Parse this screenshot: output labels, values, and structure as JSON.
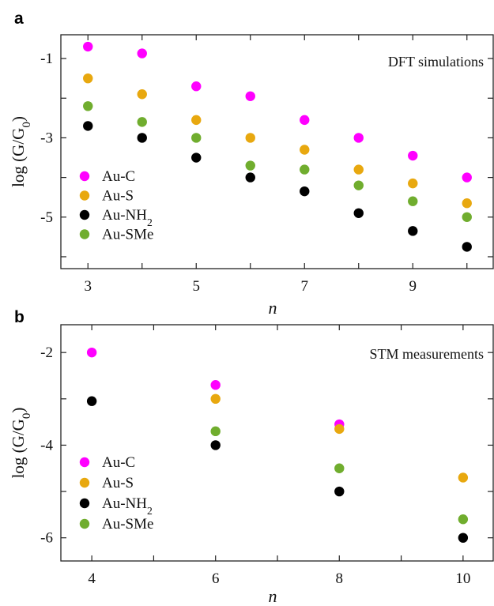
{
  "colors": {
    "Au-C": "#ff00ff",
    "Au-S": "#e8a80f",
    "Au-NH2": "#000000",
    "Au-SMe": "#70ad2e"
  },
  "chart_data": [
    {
      "panel_label": "a",
      "type": "scatter",
      "title": "DFT simulations",
      "xlabel": "n",
      "ylabel": "log (G/G0)",
      "xlim": [
        2.5,
        10.5
      ],
      "ylim": [
        -6.3,
        -0.4
      ],
      "xticks": [
        3,
        4,
        5,
        6,
        7,
        8,
        9,
        10
      ],
      "xtick_labels": [
        "3",
        "",
        "5",
        "",
        "7",
        "",
        "9",
        ""
      ],
      "yticks": [
        -1,
        -2,
        -3,
        -4,
        -5,
        -6
      ],
      "ytick_labels": [
        "-1",
        "",
        "-3",
        "",
        "-5",
        ""
      ],
      "legend_position": "lower-left",
      "series": [
        {
          "name": "Au-C",
          "x": [
            3,
            4,
            5,
            6,
            7,
            8,
            9,
            10
          ],
          "y": [
            -0.7,
            -0.87,
            -1.7,
            -1.95,
            -2.55,
            -3.0,
            -3.45,
            -4.0
          ]
        },
        {
          "name": "Au-S",
          "x": [
            3,
            4,
            5,
            6,
            7,
            8,
            9,
            10
          ],
          "y": [
            -1.5,
            -1.9,
            -2.55,
            -3.0,
            -3.3,
            -3.8,
            -4.15,
            -4.65
          ]
        },
        {
          "name": "Au-NH2",
          "x": [
            3,
            4,
            5,
            6,
            7,
            8,
            9,
            10
          ],
          "y": [
            -2.7,
            -3.0,
            -3.5,
            -4.0,
            -4.35,
            -4.9,
            -5.35,
            -5.75
          ]
        },
        {
          "name": "Au-SMe",
          "x": [
            3,
            4,
            5,
            6,
            7,
            8,
            9,
            10
          ],
          "y": [
            -2.2,
            -2.6,
            -3.0,
            -3.7,
            -3.8,
            -4.2,
            -4.6,
            -5.0
          ]
        }
      ]
    },
    {
      "panel_label": "b",
      "type": "scatter",
      "title": "STM measurements",
      "xlabel": "n",
      "ylabel": "log (G/G0)",
      "xlim": [
        3.5,
        10.5
      ],
      "ylim": [
        -6.5,
        -1.4
      ],
      "xticks": [
        4,
        5,
        6,
        7,
        8,
        9,
        10
      ],
      "xtick_labels": [
        "4",
        "",
        "6",
        "",
        "8",
        "",
        "10"
      ],
      "yticks": [
        -2,
        -3,
        -4,
        -5,
        -6
      ],
      "ytick_labels": [
        "-2",
        "",
        "-4",
        "",
        "-6"
      ],
      "legend_position": "lower-left",
      "series": [
        {
          "name": "Au-C",
          "x": [
            4,
            6,
            8
          ],
          "y": [
            -2.0,
            -2.7,
            -3.55
          ]
        },
        {
          "name": "Au-S",
          "x": [
            6,
            8,
            10
          ],
          "y": [
            -3.0,
            -3.65,
            -4.7
          ]
        },
        {
          "name": "Au-NH2",
          "x": [
            4,
            6,
            8,
            10
          ],
          "y": [
            -3.05,
            -4.0,
            -5.0,
            -6.0
          ]
        },
        {
          "name": "Au-SMe",
          "x": [
            6,
            8,
            10
          ],
          "y": [
            -3.7,
            -4.5,
            -5.6
          ]
        }
      ]
    }
  ]
}
